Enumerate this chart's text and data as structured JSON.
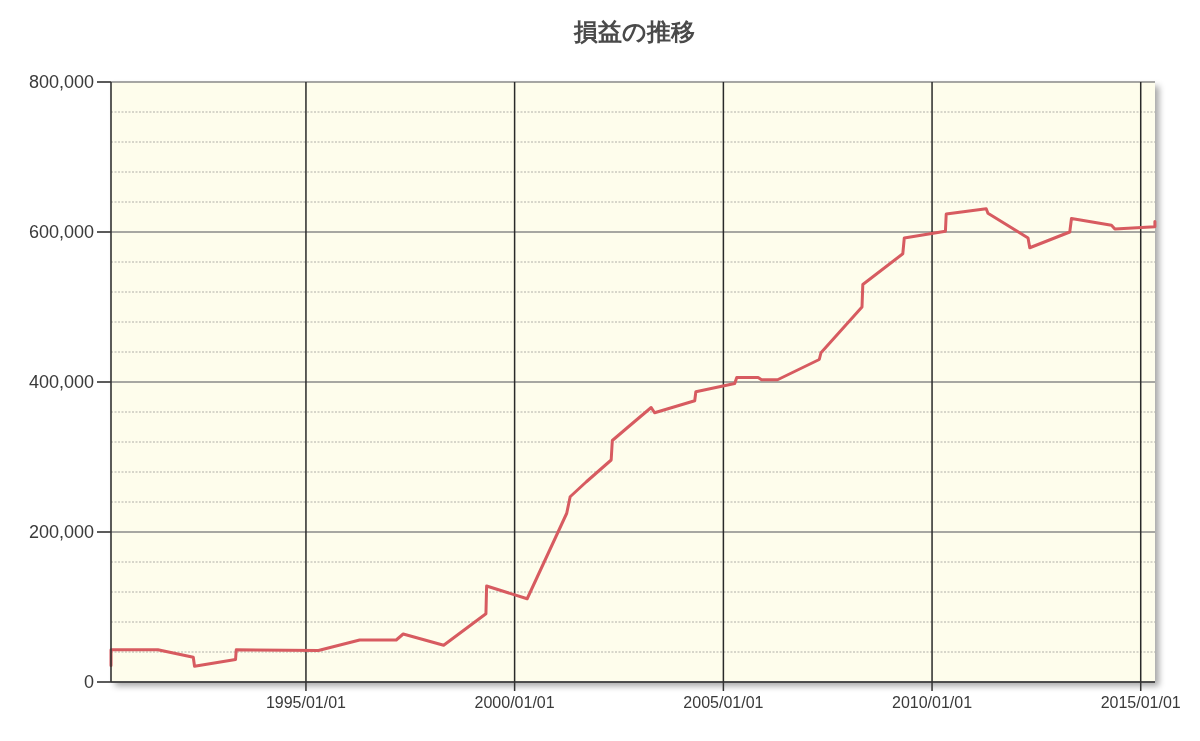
{
  "chart_data": {
    "type": "line",
    "title": "損益の推移",
    "x": [
      "1990-05-01",
      "1990-05-01",
      "1991-06-15",
      "1992-04-20",
      "1992-05-01",
      "1993-04-25",
      "1993-05-01",
      "1995-04-20",
      "1996-04-15",
      "1997-03-01",
      "1997-05-01",
      "1998-04-20",
      "1999-04-25",
      "1999-05-01",
      "2000-04-20",
      "2001-04-01",
      "2001-05-01",
      "2001-09-20",
      "2002-04-25",
      "2002-05-05",
      "2002-09-05",
      "2003-04-10",
      "2003-05-10",
      "2004-04-25",
      "2004-05-05",
      "2005-04-10",
      "2005-04-28",
      "2005-11-01",
      "2005-12-01",
      "2006-04-20",
      "2007-04-20",
      "2007-05-05",
      "2008-04-28",
      "2008-05-05",
      "2009-04-20",
      "2009-05-03",
      "2010-04-28",
      "2010-05-05",
      "2011-04-20",
      "2011-05-05",
      "2012-04-20",
      "2012-05-05",
      "2013-04-20",
      "2013-05-05",
      "2014-04-20",
      "2014-05-20",
      "2015-05-05",
      "2015-05-05"
    ],
    "series": [
      {
        "color": "#d75b60",
        "values": [
          22000,
          43000,
          43000,
          33000,
          21000,
          30000,
          43000,
          42000,
          56000,
          56000,
          64000,
          49000,
          91000,
          128000,
          111000,
          225000,
          247000,
          267000,
          296000,
          322000,
          338000,
          366000,
          359000,
          375000,
          387000,
          398000,
          406000,
          406000,
          403000,
          403000,
          430000,
          439000,
          500000,
          530000,
          571000,
          592000,
          601000,
          624000,
          631000,
          625000,
          592000,
          579000,
          600000,
          618000,
          609000,
          604000,
          607000,
          614000
        ]
      }
    ],
    "xlim": [
      "1990-05-01",
      "2015-05-06"
    ],
    "xticks": [
      {
        "value": "1995-01-01",
        "label": "1995/01/01"
      },
      {
        "value": "2000-01-01",
        "label": "2000/01/01"
      },
      {
        "value": "2005-01-01",
        "label": "2005/01/01"
      },
      {
        "value": "2010-01-01",
        "label": "2010/01/01"
      },
      {
        "value": "2015-01-01",
        "label": "2015/01/01"
      }
    ],
    "ylim": [
      0,
      800000
    ],
    "yticks": [
      0,
      {
        "value": 40000,
        "label": null
      },
      {
        "value": 80000,
        "label": null
      },
      {
        "value": 120000,
        "label": null
      },
      {
        "value": 160000,
        "label": null
      },
      {
        "value": 200000,
        "label": "200,000"
      },
      {
        "value": 240000,
        "label": null
      },
      {
        "value": 280000,
        "label": null
      },
      {
        "value": 320000,
        "label": null
      },
      {
        "value": 360000,
        "label": null
      },
      {
        "value": 400000,
        "label": "400,000"
      },
      {
        "value": 440000,
        "label": null
      },
      {
        "value": 480000,
        "label": null
      },
      {
        "value": 520000,
        "label": null
      },
      {
        "value": 560000,
        "label": null
      },
      {
        "value": 600000,
        "label": "600,000"
      },
      {
        "value": 640000,
        "label": null
      },
      {
        "value": 680000,
        "label": null
      },
      {
        "value": 720000,
        "label": null
      },
      {
        "value": 760000,
        "label": null
      },
      {
        "value": 800000,
        "label": "800,000"
      }
    ],
    "grid": true,
    "line_style": "solid"
  }
}
